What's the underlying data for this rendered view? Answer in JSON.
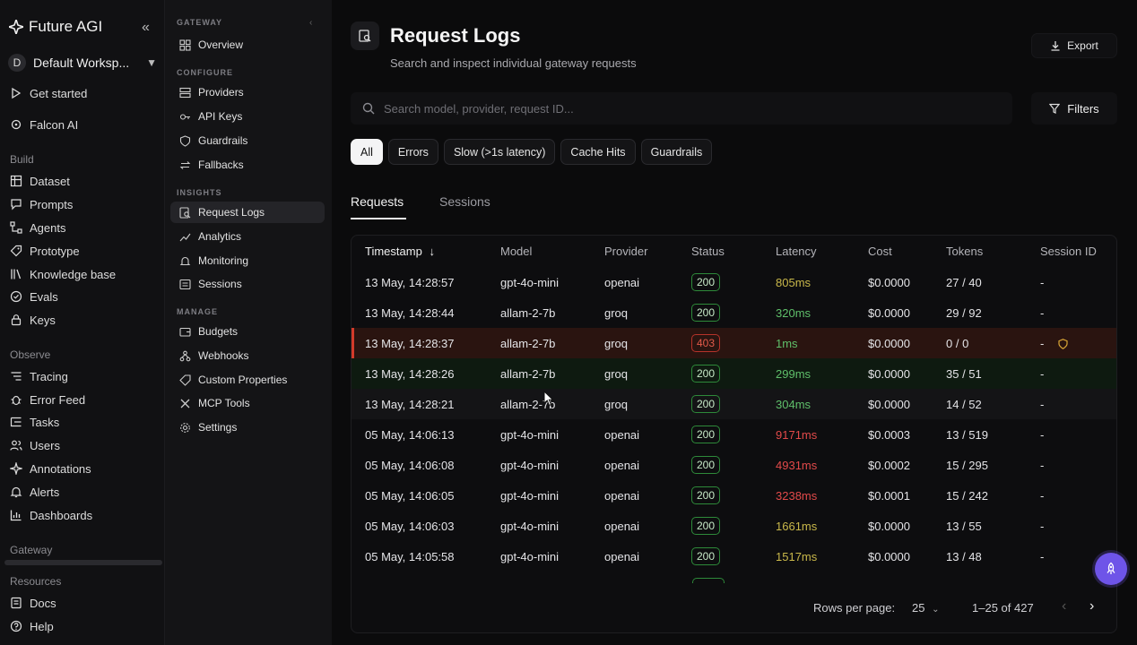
{
  "brand": {
    "name": "Future AGI"
  },
  "workspace": {
    "initial": "D",
    "name": "Default Worksp..."
  },
  "sidebar": {
    "top_items": [
      {
        "label": "Get started",
        "icon": "play-icon"
      },
      {
        "label": "Falcon AI",
        "icon": "sparkle-icon"
      }
    ],
    "build_title": "Build",
    "build_items": [
      {
        "label": "Dataset",
        "icon": "table-icon"
      },
      {
        "label": "Prompts",
        "icon": "chat-icon"
      },
      {
        "label": "Agents",
        "icon": "flow-icon"
      },
      {
        "label": "Prototype",
        "icon": "tag-icon"
      },
      {
        "label": "Knowledge base",
        "icon": "book-icon"
      },
      {
        "label": "Evals",
        "icon": "check-circle-icon"
      },
      {
        "label": "Keys",
        "icon": "lock-icon"
      }
    ],
    "observe_title": "Observe",
    "observe_items": [
      {
        "label": "Tracing",
        "icon": "trace-icon"
      },
      {
        "label": "Error Feed",
        "icon": "bug-icon"
      },
      {
        "label": "Tasks",
        "icon": "tasks-icon"
      },
      {
        "label": "Users",
        "icon": "users-icon"
      },
      {
        "label": "Annotations",
        "icon": "annotation-icon"
      },
      {
        "label": "Alerts",
        "icon": "bell-icon"
      },
      {
        "label": "Dashboards",
        "icon": "bar-chart-icon"
      }
    ],
    "gateway_title": "Gateway",
    "resources_title": "Resources",
    "resource_items": [
      {
        "label": "Docs",
        "icon": "doc-icon"
      },
      {
        "label": "Help",
        "icon": "help-icon"
      }
    ]
  },
  "subnav": {
    "gateway_title": "GATEWAY",
    "overview": "Overview",
    "configure_title": "CONFIGURE",
    "configure_items": [
      "Providers",
      "API Keys",
      "Guardrails",
      "Fallbacks"
    ],
    "insights_title": "INSIGHTS",
    "insights_items": [
      "Request Logs",
      "Analytics",
      "Monitoring",
      "Sessions"
    ],
    "manage_title": "MANAGE",
    "manage_items": [
      "Budgets",
      "Webhooks",
      "Custom Properties",
      "MCP Tools",
      "Settings"
    ]
  },
  "header": {
    "title": "Request Logs",
    "subtitle": "Search and inspect individual gateway requests",
    "export_label": "Export"
  },
  "search": {
    "placeholder": "Search model, provider, request ID...",
    "filters_label": "Filters"
  },
  "chips": [
    "All",
    "Errors",
    "Slow (>1s latency)",
    "Cache Hits",
    "Guardrails"
  ],
  "tabs": [
    "Requests",
    "Sessions"
  ],
  "table": {
    "columns": [
      "Timestamp",
      "Model",
      "Provider",
      "Status",
      "Latency",
      "Cost",
      "Tokens",
      "Session ID"
    ],
    "rows": [
      {
        "timestamp": "13 May, 14:28:57",
        "model": "gpt-4o-mini",
        "provider": "openai",
        "status": "200",
        "latency": "805ms",
        "cost": "$0.0000",
        "tokens": "27 / 40",
        "session": "-"
      },
      {
        "timestamp": "13 May, 14:28:44",
        "model": "allam-2-7b",
        "provider": "groq",
        "status": "200",
        "latency": "320ms",
        "cost": "$0.0000",
        "tokens": "29 / 92",
        "session": "-"
      },
      {
        "timestamp": "13 May, 14:28:37",
        "model": "allam-2-7b",
        "provider": "groq",
        "status": "403",
        "latency": "1ms",
        "cost": "$0.0000",
        "tokens": "0 / 0",
        "session": "-"
      },
      {
        "timestamp": "13 May, 14:28:26",
        "model": "allam-2-7b",
        "provider": "groq",
        "status": "200",
        "latency": "299ms",
        "cost": "$0.0000",
        "tokens": "35 / 51",
        "session": "-"
      },
      {
        "timestamp": "13 May, 14:28:21",
        "model": "allam-2-7b",
        "provider": "groq",
        "status": "200",
        "latency": "304ms",
        "cost": "$0.0000",
        "tokens": "14 / 52",
        "session": "-"
      },
      {
        "timestamp": "05 May, 14:06:13",
        "model": "gpt-4o-mini",
        "provider": "openai",
        "status": "200",
        "latency": "9171ms",
        "cost": "$0.0003",
        "tokens": "13 / 519",
        "session": "-"
      },
      {
        "timestamp": "05 May, 14:06:08",
        "model": "gpt-4o-mini",
        "provider": "openai",
        "status": "200",
        "latency": "4931ms",
        "cost": "$0.0002",
        "tokens": "15 / 295",
        "session": "-"
      },
      {
        "timestamp": "05 May, 14:06:05",
        "model": "gpt-4o-mini",
        "provider": "openai",
        "status": "200",
        "latency": "3238ms",
        "cost": "$0.0001",
        "tokens": "15 / 242",
        "session": "-"
      },
      {
        "timestamp": "05 May, 14:06:03",
        "model": "gpt-4o-mini",
        "provider": "openai",
        "status": "200",
        "latency": "1661ms",
        "cost": "$0.0000",
        "tokens": "13 / 55",
        "session": "-"
      },
      {
        "timestamp": "05 May, 14:05:58",
        "model": "gpt-4o-mini",
        "provider": "openai",
        "status": "200",
        "latency": "1517ms",
        "cost": "$0.0000",
        "tokens": "13 / 48",
        "session": "-"
      }
    ]
  },
  "pagination": {
    "rows_label": "Rows per page:",
    "rows_value": "25",
    "range": "1–25 of 427"
  },
  "colors": {
    "green": "#5fbf6a",
    "yellow": "#c9b84a",
    "orange": "#d99a3a",
    "red": "#e24a4a",
    "accent": "#6e54e8"
  }
}
